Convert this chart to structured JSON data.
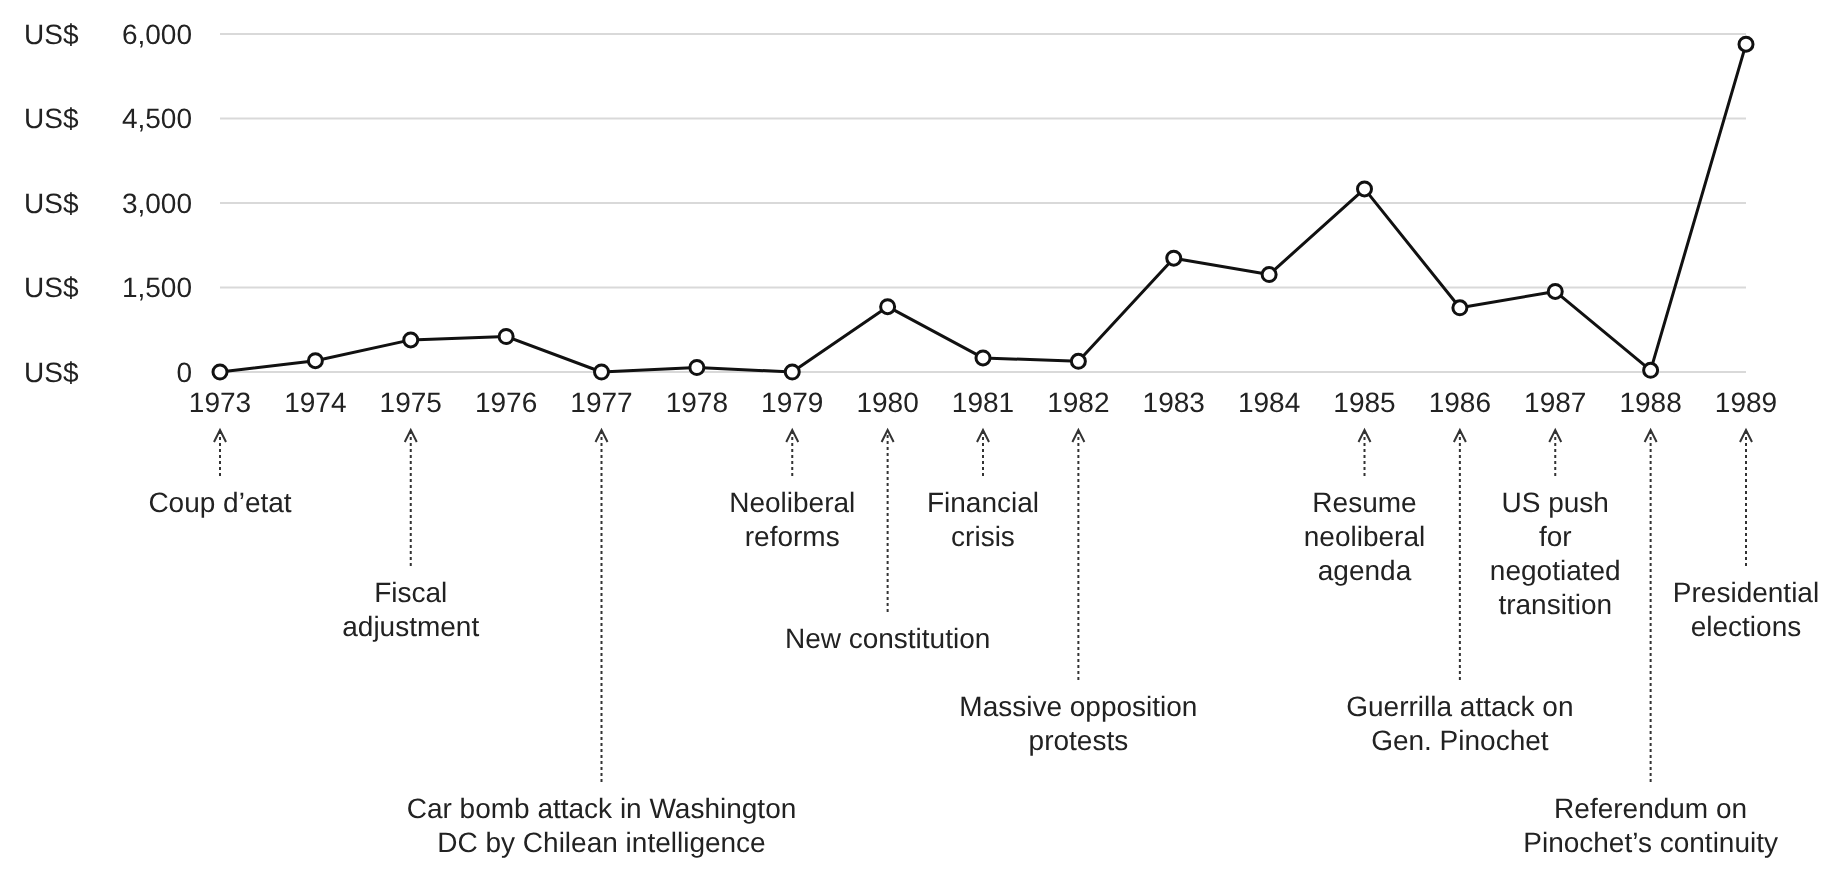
{
  "chart_data": {
    "type": "line",
    "x": [
      1973,
      1974,
      1975,
      1976,
      1977,
      1978,
      1979,
      1980,
      1981,
      1982,
      1983,
      1984,
      1985,
      1986,
      1987,
      1988,
      1989
    ],
    "series": [
      {
        "color": "#111111",
        "values": [
          0,
          200,
          570,
          630,
          0,
          80,
          0,
          1160,
          250,
          190,
          2020,
          1730,
          3250,
          1140,
          1430,
          30,
          5820
        ]
      }
    ],
    "xlim": [
      1973,
      1989
    ],
    "xticks": [
      1973,
      1974,
      1975,
      1976,
      1977,
      1978,
      1979,
      1980,
      1981,
      1982,
      1983,
      1984,
      1985,
      1986,
      1987,
      1988,
      1989
    ],
    "ylabel": "US$",
    "ylim": [
      0,
      6000
    ],
    "yticks": [
      0,
      {
        "value": 1500,
        "label": "1,500"
      },
      {
        "value": 3000,
        "label": "3,000"
      },
      {
        "value": 4500,
        "label": "4,500"
      },
      {
        "value": 6000,
        "label": "6,000"
      }
    ],
    "grid": "y",
    "marker": "circle",
    "line_style": "solid",
    "legend": false,
    "annotations": [
      {
        "text": "Coup d’etat",
        "x": 1973
      },
      {
        "text": "Fiscal\nadjustment",
        "x": 1975
      },
      {
        "text": "Car bomb attack in Washington\nDC by Chilean intelligence",
        "x": 1977
      },
      {
        "text": "Neoliberal\nreforms",
        "x": 1979
      },
      {
        "text": "New constitution",
        "x": 1980
      },
      {
        "text": "Financial\ncrisis",
        "x": 1981
      },
      {
        "text": "Massive opposition\nprotests",
        "x": 1982
      },
      {
        "text": "Resume\nneoliberal\nagenda",
        "x": 1985
      },
      {
        "text": "Guerrilla attack on\nGen. Pinochet",
        "x": 1986
      },
      {
        "text": "US push\nfor\nnegotiated\ntransition",
        "x": 1987
      },
      {
        "text": "Referendum on\nPinochet’s continuity",
        "x": 1988
      },
      {
        "text": "Presidential\nelections",
        "x": 1989
      }
    ]
  }
}
